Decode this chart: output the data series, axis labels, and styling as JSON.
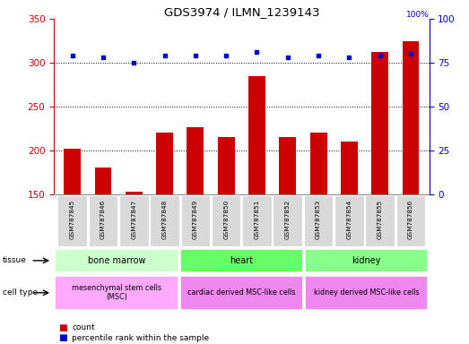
{
  "title": "GDS3974 / ILMN_1239143",
  "samples": [
    "GSM787845",
    "GSM787846",
    "GSM787847",
    "GSM787848",
    "GSM787849",
    "GSM787850",
    "GSM787851",
    "GSM787852",
    "GSM787853",
    "GSM787854",
    "GSM787855",
    "GSM787856"
  ],
  "counts": [
    202,
    181,
    153,
    220,
    227,
    215,
    285,
    215,
    220,
    210,
    312,
    325
  ],
  "percentile_ranks": [
    79,
    78,
    75,
    79,
    79,
    79,
    81,
    78,
    79,
    78,
    79,
    80
  ],
  "bar_color": "#cc0000",
  "dot_color": "#0000cc",
  "ylim_left": [
    150,
    350
  ],
  "ylim_right": [
    0,
    100
  ],
  "yticks_left": [
    150,
    200,
    250,
    300,
    350
  ],
  "yticks_right": [
    0,
    25,
    50,
    75,
    100
  ],
  "grid_values": [
    200,
    250,
    300
  ],
  "tissue_defs": [
    {
      "label": "bone marrow",
      "start": 0,
      "end": 4,
      "color": "#ccffcc"
    },
    {
      "label": "heart",
      "start": 4,
      "end": 8,
      "color": "#66ff66"
    },
    {
      "label": "kidney",
      "start": 8,
      "end": 12,
      "color": "#88ff88"
    }
  ],
  "cell_defs": [
    {
      "label": "mesenchymal stem cells\n(MSC)",
      "start": 0,
      "end": 4,
      "color": "#ffaaff"
    },
    {
      "label": "cardiac derived MSC-like cells",
      "start": 4,
      "end": 8,
      "color": "#ee88ee"
    },
    {
      "label": "kidney derived MSC-like cells",
      "start": 8,
      "end": 12,
      "color": "#ee88ee"
    }
  ],
  "sample_box_color": "#d9d9d9",
  "legend_count_color": "#cc0000",
  "legend_pct_color": "#0000cc",
  "bg_color": "#ffffff"
}
